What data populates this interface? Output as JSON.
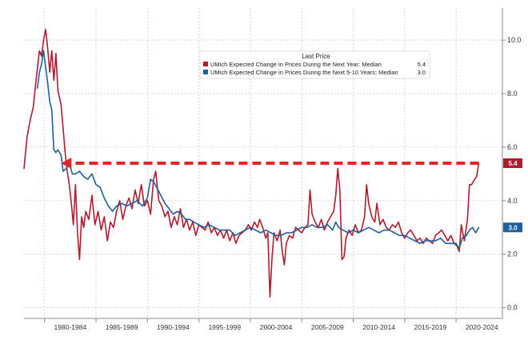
{
  "chart_data": {
    "type": "line",
    "title": "",
    "xlabel": "",
    "ylabel": "",
    "x_range": [
      1978,
      2024.5
    ],
    "ylim": [
      -0.4,
      11.2
    ],
    "y_ticks": [
      "0.0",
      "2.0",
      "4.0",
      "6.0",
      "8.0",
      "10.0"
    ],
    "y_axis_side": "right",
    "x_ticks": [
      {
        "label": "1980-1984",
        "at": 1982.5
      },
      {
        "label": "1985-1989",
        "at": 1987.5
      },
      {
        "label": "1990-1994",
        "at": 1992.5
      },
      {
        "label": "1995-1999",
        "at": 1997.5
      },
      {
        "label": "2000-2004",
        "at": 2002.5
      },
      {
        "label": "2005-2009",
        "at": 2007.5
      },
      {
        "label": "2010-2014",
        "at": 2012.5
      },
      {
        "label": "2015-2019",
        "at": 2017.5
      },
      {
        "label": "2020-2024",
        "at": 2022.5
      }
    ],
    "grid": true,
    "legend": {
      "title": "Last Price",
      "placement": "top-center"
    },
    "series": [
      {
        "name": "UMich Expected Change in Prices During the Next Year: Median",
        "last_value": "5.4",
        "last_label": "5.4",
        "color": "#b01c2e",
        "points": [
          [
            1978.0,
            5.2
          ],
          [
            1978.3,
            6.4
          ],
          [
            1978.6,
            7.0
          ],
          [
            1978.9,
            7.5
          ],
          [
            1979.2,
            8.6
          ],
          [
            1979.5,
            9.6
          ],
          [
            1979.7,
            9.4
          ],
          [
            1979.9,
            10.0
          ],
          [
            1980.1,
            10.4
          ],
          [
            1980.3,
            9.7
          ],
          [
            1980.5,
            8.8
          ],
          [
            1980.7,
            9.6
          ],
          [
            1980.9,
            8.5
          ],
          [
            1981.1,
            9.5
          ],
          [
            1981.3,
            8.1
          ],
          [
            1981.6,
            7.6
          ],
          [
            1981.8,
            6.7
          ],
          [
            1982.0,
            5.8
          ],
          [
            1982.2,
            5.1
          ],
          [
            1982.4,
            4.6
          ],
          [
            1982.6,
            3.9
          ],
          [
            1982.8,
            3.1
          ],
          [
            1983.0,
            4.6
          ],
          [
            1983.2,
            2.8
          ],
          [
            1983.4,
            1.8
          ],
          [
            1983.6,
            3.4
          ],
          [
            1983.8,
            3.0
          ],
          [
            1984.0,
            3.6
          ],
          [
            1984.3,
            3.3
          ],
          [
            1984.6,
            4.2
          ],
          [
            1984.9,
            3.1
          ],
          [
            1985.2,
            3.6
          ],
          [
            1985.5,
            2.9
          ],
          [
            1985.8,
            3.4
          ],
          [
            1986.1,
            2.5
          ],
          [
            1986.4,
            3.2
          ],
          [
            1986.7,
            3.0
          ],
          [
            1987.0,
            3.6
          ],
          [
            1987.3,
            4.0
          ],
          [
            1987.6,
            3.3
          ],
          [
            1987.9,
            3.8
          ],
          [
            1988.2,
            4.1
          ],
          [
            1988.5,
            3.7
          ],
          [
            1988.8,
            4.4
          ],
          [
            1989.1,
            3.9
          ],
          [
            1989.4,
            4.6
          ],
          [
            1989.7,
            3.8
          ],
          [
            1990.0,
            4.0
          ],
          [
            1990.3,
            3.5
          ],
          [
            1990.6,
            4.8
          ],
          [
            1990.8,
            5.1
          ],
          [
            1991.1,
            4.0
          ],
          [
            1991.4,
            3.8
          ],
          [
            1991.7,
            3.4
          ],
          [
            1992.0,
            3.6
          ],
          [
            1992.3,
            3.0
          ],
          [
            1992.6,
            3.4
          ],
          [
            1992.9,
            3.1
          ],
          [
            1993.2,
            3.7
          ],
          [
            1993.5,
            3.0
          ],
          [
            1993.8,
            3.3
          ],
          [
            1994.1,
            2.9
          ],
          [
            1994.4,
            3.2
          ],
          [
            1994.7,
            2.7
          ],
          [
            1995.0,
            3.1
          ],
          [
            1995.3,
            3.0
          ],
          [
            1995.6,
            2.9
          ],
          [
            1995.9,
            3.2
          ],
          [
            1996.2,
            2.8
          ],
          [
            1996.5,
            3.0
          ],
          [
            1996.8,
            2.7
          ],
          [
            1997.1,
            2.9
          ],
          [
            1997.4,
            2.6
          ],
          [
            1997.7,
            2.9
          ],
          [
            1998.0,
            2.5
          ],
          [
            1998.3,
            2.8
          ],
          [
            1998.6,
            2.4
          ],
          [
            1998.9,
            2.7
          ],
          [
            1999.2,
            2.8
          ],
          [
            1999.5,
            2.9
          ],
          [
            1999.8,
            3.1
          ],
          [
            2000.1,
            2.9
          ],
          [
            2000.4,
            3.2
          ],
          [
            2000.7,
            3.0
          ],
          [
            2000.9,
            3.3
          ],
          [
            2001.2,
            3.0
          ],
          [
            2001.5,
            2.6
          ],
          [
            2001.7,
            2.8
          ],
          [
            2001.9,
            0.4
          ],
          [
            2002.1,
            1.8
          ],
          [
            2002.3,
            2.8
          ],
          [
            2002.6,
            2.5
          ],
          [
            2002.9,
            2.9
          ],
          [
            2003.1,
            2.1
          ],
          [
            2003.3,
            1.6
          ],
          [
            2003.5,
            2.4
          ],
          [
            2003.8,
            2.7
          ],
          [
            2004.1,
            2.6
          ],
          [
            2004.4,
            3.0
          ],
          [
            2004.7,
            2.9
          ],
          [
            2005.0,
            2.8
          ],
          [
            2005.3,
            3.0
          ],
          [
            2005.6,
            3.1
          ],
          [
            2005.8,
            4.4
          ],
          [
            2006.0,
            3.5
          ],
          [
            2006.3,
            3.2
          ],
          [
            2006.6,
            3.0
          ],
          [
            2006.9,
            3.3
          ],
          [
            2007.2,
            2.9
          ],
          [
            2007.5,
            3.2
          ],
          [
            2007.8,
            3.4
          ],
          [
            2008.1,
            3.6
          ],
          [
            2008.3,
            4.2
          ],
          [
            2008.5,
            5.2
          ],
          [
            2008.7,
            4.4
          ],
          [
            2008.9,
            1.8
          ],
          [
            2009.1,
            1.9
          ],
          [
            2009.3,
            2.6
          ],
          [
            2009.6,
            2.9
          ],
          [
            2009.9,
            2.7
          ],
          [
            2010.2,
            3.1
          ],
          [
            2010.5,
            2.8
          ],
          [
            2010.8,
            2.9
          ],
          [
            2011.1,
            3.4
          ],
          [
            2011.3,
            4.6
          ],
          [
            2011.5,
            3.9
          ],
          [
            2011.8,
            3.4
          ],
          [
            2012.1,
            3.2
          ],
          [
            2012.3,
            3.9
          ],
          [
            2012.6,
            3.1
          ],
          [
            2012.9,
            3.3
          ],
          [
            2013.2,
            3.0
          ],
          [
            2013.5,
            2.9
          ],
          [
            2013.8,
            3.1
          ],
          [
            2014.1,
            3.0
          ],
          [
            2014.4,
            3.2
          ],
          [
            2014.7,
            2.8
          ],
          [
            2015.0,
            2.6
          ],
          [
            2015.3,
            2.8
          ],
          [
            2015.6,
            2.9
          ],
          [
            2015.9,
            2.7
          ],
          [
            2016.2,
            2.5
          ],
          [
            2016.5,
            2.6
          ],
          [
            2016.8,
            2.4
          ],
          [
            2017.1,
            2.6
          ],
          [
            2017.4,
            2.5
          ],
          [
            2017.7,
            2.4
          ],
          [
            2018.0,
            2.7
          ],
          [
            2018.3,
            2.8
          ],
          [
            2018.6,
            2.9
          ],
          [
            2018.9,
            2.7
          ],
          [
            2019.2,
            2.5
          ],
          [
            2019.5,
            2.7
          ],
          [
            2019.8,
            2.4
          ],
          [
            2020.1,
            2.3
          ],
          [
            2020.3,
            2.1
          ],
          [
            2020.5,
            3.1
          ],
          [
            2020.8,
            2.5
          ],
          [
            2021.1,
            3.3
          ],
          [
            2021.3,
            4.6
          ],
          [
            2021.5,
            4.6
          ],
          [
            2021.8,
            4.8
          ],
          [
            2022.0,
            4.9
          ],
          [
            2022.2,
            5.4
          ]
        ]
      },
      {
        "name": "UMich Expected Change in Prices During the Next 5-10 Years: Median",
        "last_value": "3.0",
        "last_label": "3.0",
        "color": "#1f5f9e",
        "points": [
          [
            1979.3,
            8.2
          ],
          [
            1979.5,
            8.8
          ],
          [
            1979.7,
            9.1
          ],
          [
            1979.9,
            9.6
          ],
          [
            1980.1,
            9.0
          ],
          [
            1980.3,
            8.4
          ],
          [
            1980.5,
            7.7
          ],
          [
            1980.7,
            7.4
          ],
          [
            1980.9,
            5.9
          ],
          [
            1981.1,
            5.8
          ],
          [
            1981.3,
            5.9
          ],
          [
            1981.6,
            5.7
          ],
          [
            1981.8,
            5.1
          ],
          [
            1982.1,
            5.2
          ],
          [
            1982.4,
            5.4
          ],
          [
            1982.7,
            5.0
          ],
          [
            1983.0,
            5.0
          ],
          [
            1983.4,
            5.1
          ],
          [
            1983.8,
            4.9
          ],
          [
            1984.2,
            4.8
          ],
          [
            1984.6,
            5.0
          ],
          [
            1985.0,
            4.6
          ],
          [
            1985.4,
            4.5
          ],
          [
            1985.8,
            4.1
          ],
          [
            1986.2,
            3.8
          ],
          [
            1986.6,
            3.6
          ],
          [
            1987.0,
            3.8
          ],
          [
            1987.5,
            3.9
          ],
          [
            1988.0,
            3.8
          ],
          [
            1988.5,
            3.9
          ],
          [
            1989.0,
            4.0
          ],
          [
            1989.5,
            3.8
          ],
          [
            1990.0,
            4.1
          ],
          [
            1990.3,
            4.8
          ],
          [
            1990.6,
            4.7
          ],
          [
            1990.9,
            4.5
          ],
          [
            1991.3,
            4.2
          ],
          [
            1991.7,
            3.9
          ],
          [
            1992.1,
            3.7
          ],
          [
            1992.5,
            3.5
          ],
          [
            1992.9,
            3.6
          ],
          [
            1993.3,
            3.5
          ],
          [
            1993.7,
            3.3
          ],
          [
            1994.1,
            3.3
          ],
          [
            1994.5,
            3.2
          ],
          [
            1995.0,
            3.1
          ],
          [
            1995.5,
            3.0
          ],
          [
            1996.0,
            3.1
          ],
          [
            1996.5,
            3.0
          ],
          [
            1997.0,
            2.9
          ],
          [
            1997.5,
            2.9
          ],
          [
            1998.0,
            2.9
          ],
          [
            1998.5,
            2.7
          ],
          [
            1999.0,
            2.8
          ],
          [
            1999.5,
            2.9
          ],
          [
            2000.0,
            3.0
          ],
          [
            2000.5,
            2.9
          ],
          [
            2001.0,
            2.8
          ],
          [
            2001.5,
            2.9
          ],
          [
            2002.0,
            2.8
          ],
          [
            2002.5,
            2.7
          ],
          [
            2003.0,
            2.7
          ],
          [
            2003.5,
            2.8
          ],
          [
            2004.0,
            2.8
          ],
          [
            2004.5,
            2.9
          ],
          [
            2005.0,
            3.0
          ],
          [
            2005.5,
            3.0
          ],
          [
            2006.0,
            3.1
          ],
          [
            2006.5,
            3.0
          ],
          [
            2007.0,
            3.0
          ],
          [
            2007.5,
            3.1
          ],
          [
            2008.0,
            2.9
          ],
          [
            2008.3,
            3.2
          ],
          [
            2008.6,
            3.0
          ],
          [
            2009.0,
            2.9
          ],
          [
            2009.5,
            2.8
          ],
          [
            2010.0,
            2.9
          ],
          [
            2010.5,
            2.8
          ],
          [
            2011.0,
            2.9
          ],
          [
            2011.5,
            3.0
          ],
          [
            2012.0,
            2.9
          ],
          [
            2012.5,
            2.8
          ],
          [
            2013.0,
            2.9
          ],
          [
            2013.5,
            2.9
          ],
          [
            2014.0,
            2.8
          ],
          [
            2014.5,
            2.7
          ],
          [
            2015.0,
            2.7
          ],
          [
            2015.5,
            2.6
          ],
          [
            2016.0,
            2.5
          ],
          [
            2016.5,
            2.4
          ],
          [
            2017.0,
            2.5
          ],
          [
            2017.5,
            2.5
          ],
          [
            2018.0,
            2.5
          ],
          [
            2018.5,
            2.6
          ],
          [
            2019.0,
            2.4
          ],
          [
            2019.5,
            2.4
          ],
          [
            2020.0,
            2.4
          ],
          [
            2020.3,
            2.2
          ],
          [
            2020.6,
            2.6
          ],
          [
            2021.0,
            2.7
          ],
          [
            2021.3,
            2.9
          ],
          [
            2021.6,
            3.0
          ],
          [
            2021.9,
            2.8
          ],
          [
            2022.2,
            3.0
          ]
        ]
      }
    ],
    "annotations": [
      {
        "type": "dashed-arrow",
        "y": 5.4,
        "x_start": 2022.2,
        "x_end": 1981.6,
        "color": "#e3242b"
      }
    ]
  }
}
